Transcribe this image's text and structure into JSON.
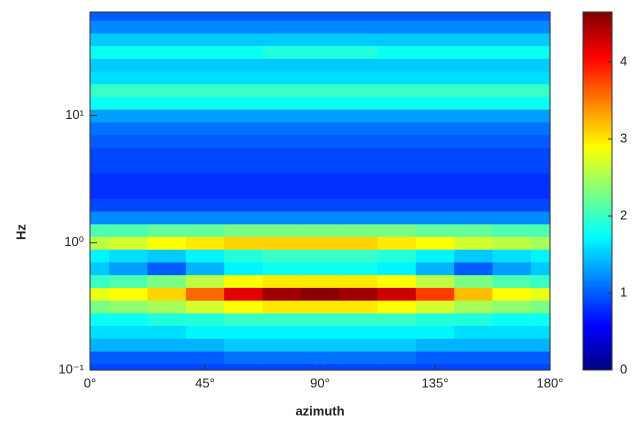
{
  "chart_data": {
    "type": "heatmap",
    "xlabel": "azimuth",
    "ylabel": "Hz",
    "x": [
      0,
      15,
      30,
      45,
      60,
      75,
      90,
      105,
      120,
      135,
      150,
      165,
      180
    ],
    "y": [
      0.1,
      0.126,
      0.158,
      0.2,
      0.251,
      0.316,
      0.398,
      0.501,
      0.631,
      0.794,
      1,
      1.26,
      1.58,
      2,
      2.51,
      3.16,
      3.98,
      5.01,
      6.31,
      7.94,
      10,
      12.6,
      15.8,
      20,
      25.1,
      31.6,
      39.8,
      50.1,
      63.1
    ],
    "z": [
      [
        0.9,
        0.9,
        0.9,
        0.9,
        0.9,
        0.9,
        0.9,
        0.9,
        0.9,
        0.9,
        0.9,
        0.9,
        0.9
      ],
      [
        1.0,
        1.0,
        1.0,
        1.0,
        1.1,
        1.1,
        1.1,
        1.1,
        1.1,
        1.0,
        1.0,
        1.0,
        1.0
      ],
      [
        1.4,
        1.4,
        1.4,
        1.4,
        1.5,
        1.5,
        1.5,
        1.5,
        1.5,
        1.4,
        1.4,
        1.4,
        1.4
      ],
      [
        1.6,
        1.6,
        1.6,
        1.7,
        1.7,
        1.7,
        1.7,
        1.7,
        1.7,
        1.7,
        1.6,
        1.6,
        1.6
      ],
      [
        1.8,
        1.8,
        1.9,
        1.9,
        2.0,
        2.0,
        2.0,
        2.0,
        2.0,
        1.9,
        1.9,
        1.8,
        1.8
      ],
      [
        2.3,
        2.4,
        2.5,
        2.7,
        2.9,
        3.0,
        3.0,
        3.0,
        2.9,
        2.7,
        2.5,
        2.4,
        2.3
      ],
      [
        2.8,
        2.9,
        3.1,
        3.6,
        4.2,
        4.5,
        4.6,
        4.5,
        4.3,
        3.8,
        3.2,
        2.9,
        2.8
      ],
      [
        2.0,
        2.1,
        2.3,
        2.6,
        2.9,
        3.0,
        3.0,
        3.0,
        2.9,
        2.6,
        2.3,
        2.1,
        2.0
      ],
      [
        1.5,
        1.3,
        1.0,
        1.4,
        1.7,
        1.8,
        1.8,
        1.8,
        1.7,
        1.4,
        1.0,
        1.3,
        1.5
      ],
      [
        1.7,
        1.6,
        1.5,
        1.7,
        1.9,
        2.0,
        2.0,
        2.0,
        1.9,
        1.7,
        1.5,
        1.6,
        1.7
      ],
      [
        2.6,
        2.7,
        2.9,
        3.0,
        3.1,
        3.1,
        3.1,
        3.1,
        3.0,
        2.9,
        2.7,
        2.6,
        2.5
      ],
      [
        2.1,
        2.1,
        2.2,
        2.2,
        2.3,
        2.3,
        2.3,
        2.3,
        2.3,
        2.2,
        2.2,
        2.1,
        2.1
      ],
      [
        1.2,
        1.2,
        1.2,
        1.2,
        1.2,
        1.2,
        1.2,
        1.2,
        1.2,
        1.2,
        1.2,
        1.2,
        1.2
      ],
      [
        0.9,
        0.9,
        0.9,
        0.9,
        0.9,
        0.9,
        0.9,
        0.9,
        0.9,
        0.9,
        0.9,
        0.9,
        0.9
      ],
      [
        0.8,
        0.8,
        0.8,
        0.8,
        0.8,
        0.8,
        0.8,
        0.8,
        0.8,
        0.8,
        0.8,
        0.8,
        0.8
      ],
      [
        0.8,
        0.8,
        0.8,
        0.8,
        0.8,
        0.8,
        0.8,
        0.8,
        0.8,
        0.8,
        0.8,
        0.8,
        0.8
      ],
      [
        0.9,
        0.9,
        0.9,
        0.9,
        0.9,
        0.9,
        0.9,
        0.9,
        0.9,
        0.9,
        0.9,
        0.9,
        0.9
      ],
      [
        0.9,
        0.9,
        0.9,
        0.9,
        0.9,
        0.9,
        0.9,
        0.9,
        0.9,
        0.9,
        0.9,
        0.9,
        0.9
      ],
      [
        1.0,
        1.0,
        1.0,
        1.0,
        1.0,
        1.0,
        1.0,
        1.0,
        1.0,
        1.0,
        1.0,
        1.0,
        1.0
      ],
      [
        1.1,
        1.1,
        1.1,
        1.1,
        1.1,
        1.1,
        1.1,
        1.1,
        1.1,
        1.1,
        1.1,
        1.1,
        1.1
      ],
      [
        1.3,
        1.3,
        1.3,
        1.3,
        1.3,
        1.3,
        1.3,
        1.3,
        1.3,
        1.3,
        1.3,
        1.3,
        1.3
      ],
      [
        1.8,
        1.8,
        1.8,
        1.8,
        1.8,
        1.8,
        1.8,
        1.8,
        1.8,
        1.8,
        1.8,
        1.8,
        1.8
      ],
      [
        2.0,
        2.0,
        2.0,
        2.0,
        2.0,
        2.0,
        2.0,
        2.0,
        2.0,
        2.0,
        2.0,
        2.0,
        2.0
      ],
      [
        1.6,
        1.6,
        1.6,
        1.6,
        1.6,
        1.6,
        1.6,
        1.6,
        1.6,
        1.6,
        1.6,
        1.6,
        1.6
      ],
      [
        1.5,
        1.5,
        1.5,
        1.5,
        1.5,
        1.5,
        1.5,
        1.5,
        1.5,
        1.5,
        1.5,
        1.5,
        1.5
      ],
      [
        1.8,
        1.8,
        1.8,
        1.8,
        1.8,
        1.9,
        1.9,
        1.9,
        1.8,
        1.8,
        1.8,
        1.8,
        1.8
      ],
      [
        1.5,
        1.5,
        1.5,
        1.5,
        1.5,
        1.5,
        1.5,
        1.5,
        1.5,
        1.5,
        1.5,
        1.5,
        1.5
      ],
      [
        1.2,
        1.2,
        1.2,
        1.2,
        1.2,
        1.2,
        1.2,
        1.2,
        1.2,
        1.2,
        1.2,
        1.2,
        1.2
      ],
      [
        1.0,
        1.0,
        1.0,
        1.0,
        1.0,
        1.0,
        1.0,
        1.0,
        1.0,
        1.0,
        1.0,
        1.0,
        1.0
      ]
    ],
    "xlim": [
      0,
      180
    ],
    "xticks": [
      {
        "value": 0,
        "label": "0°"
      },
      {
        "value": 45,
        "label": "45°"
      },
      {
        "value": 90,
        "label": "90°"
      },
      {
        "value": 135,
        "label": "135°"
      },
      {
        "value": 180,
        "label": "180°"
      }
    ],
    "ylim": [
      0.1,
      65
    ],
    "ylog": true,
    "yticks": [
      {
        "value": 0.1,
        "label": "10⁻¹"
      },
      {
        "value": 1,
        "label": "10⁰"
      },
      {
        "value": 10,
        "label": "10¹"
      }
    ],
    "colormap": "jet",
    "zlim": [
      0,
      4.65
    ],
    "zticks": [
      0,
      1,
      2,
      3,
      4
    ]
  }
}
